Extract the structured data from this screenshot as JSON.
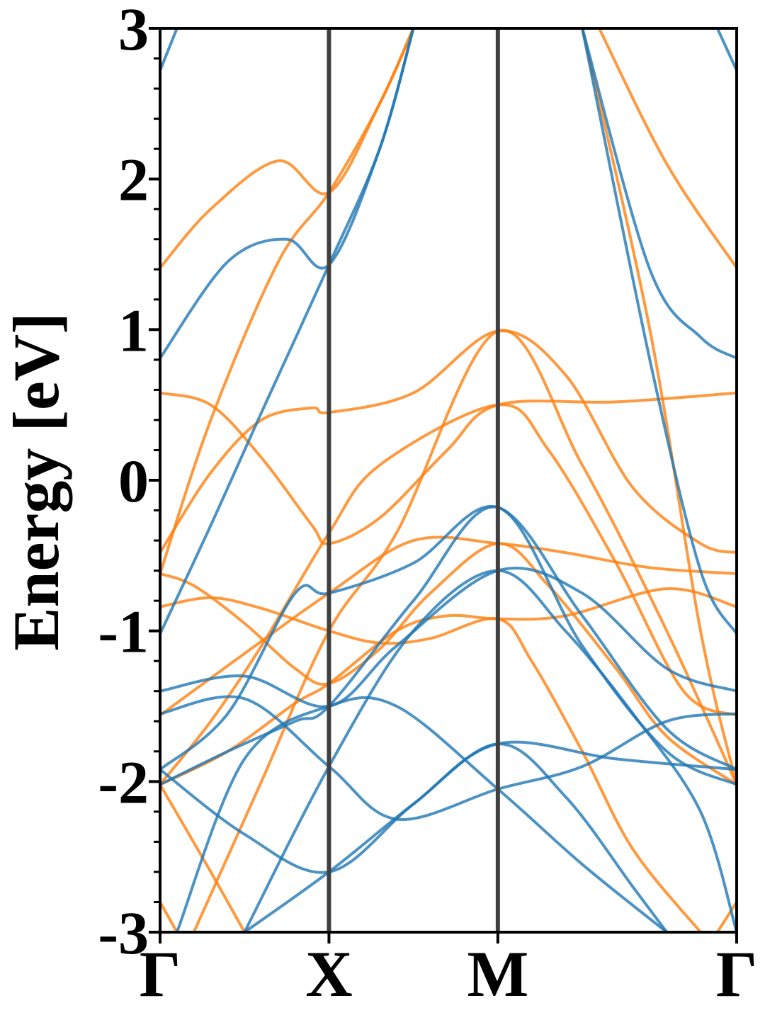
{
  "chart_data": {
    "type": "line",
    "title": "",
    "ylabel": "Energy [eV]",
    "xlabel": "",
    "ylim": [
      -3,
      3
    ],
    "yticks": [
      -3,
      -2,
      -1,
      0,
      1,
      2,
      3
    ],
    "y_tick_labels": [
      "-3",
      "-2",
      "-1",
      "0",
      "1",
      "2",
      "3"
    ],
    "xlim": [
      0,
      3.414
    ],
    "kpoints": [
      {
        "label": "Γ",
        "x": 0
      },
      {
        "label": "X",
        "x": 1
      },
      {
        "label": "M",
        "x": 2
      },
      {
        "label": "Γ",
        "x": 3.414
      }
    ],
    "colors": {
      "spin_up": "#1f77b4",
      "spin_down": "#ff7f0e",
      "kline": "#404040"
    },
    "grid": false,
    "legend": "none",
    "series": [
      {
        "color": "spin_down",
        "points": [
          [
            0,
            -1.56
          ],
          [
            0.5,
            -1.15
          ],
          [
            1,
            -0.75
          ],
          [
            1.5,
            -0.4
          ],
          [
            2,
            -0.42
          ],
          [
            2.4,
            -0.48
          ],
          [
            2.9,
            -0.58
          ],
          [
            3.414,
            -0.62
          ]
        ]
      },
      {
        "color": "spin_down",
        "points": [
          [
            0,
            -2.02
          ],
          [
            0.4,
            -1.8
          ],
          [
            0.8,
            -1.48
          ],
          [
            1,
            -1.35
          ],
          [
            1.4,
            -1.0
          ],
          [
            1.7,
            -0.9
          ],
          [
            2,
            -0.92
          ],
          [
            2.4,
            -0.9
          ],
          [
            3.0,
            -0.72
          ],
          [
            3.414,
            -0.84
          ]
        ]
      },
      {
        "color": "spin_down",
        "points": [
          [
            0,
            -0.62
          ],
          [
            0.2,
            -0.7
          ],
          [
            0.5,
            -0.95
          ],
          [
            0.8,
            -1.25
          ],
          [
            1,
            -1.35
          ],
          [
            1.3,
            -1.12
          ],
          [
            1.6,
            -0.75
          ],
          [
            2,
            -0.42
          ],
          [
            2.3,
            -0.7
          ],
          [
            2.7,
            -1.25
          ],
          [
            3.0,
            -1.7
          ],
          [
            3.414,
            -2.02
          ]
        ]
      },
      {
        "color": "spin_down",
        "points": [
          [
            0,
            -0.84
          ],
          [
            0.3,
            -0.78
          ],
          [
            0.6,
            -0.85
          ],
          [
            1,
            -1.0
          ],
          [
            1.3,
            -1.08
          ],
          [
            1.6,
            -1.05
          ],
          [
            2,
            -0.92
          ],
          [
            2.2,
            -1.2
          ],
          [
            2.5,
            -1.8
          ],
          [
            2.8,
            -2.45
          ],
          [
            3.2,
            -3.0
          ]
        ]
      },
      {
        "color": "spin_down",
        "points": [
          [
            0,
            -0.48
          ],
          [
            0.3,
            0.05
          ],
          [
            0.6,
            0.4
          ],
          [
            0.9,
            0.48
          ],
          [
            1,
            0.45
          ],
          [
            1.5,
            0.58
          ],
          [
            2,
            0.99
          ],
          [
            2.4,
            0.7
          ],
          [
            2.8,
            -0.05
          ],
          [
            3.2,
            -0.42
          ],
          [
            3.414,
            -0.48
          ]
        ]
      },
      {
        "color": "spin_down",
        "points": [
          [
            0,
            0.58
          ],
          [
            0.3,
            0.5
          ],
          [
            0.6,
            0.15
          ],
          [
            0.9,
            -0.3
          ],
          [
            1,
            -0.42
          ],
          [
            1.3,
            -0.25
          ],
          [
            1.7,
            0.2
          ],
          [
            2,
            0.5
          ],
          [
            2.7,
            0.52
          ],
          [
            3.414,
            0.58
          ]
        ]
      },
      {
        "color": "spin_down",
        "points": [
          [
            0,
            1.41
          ],
          [
            0.3,
            1.8
          ],
          [
            0.7,
            2.12
          ],
          [
            1,
            1.91
          ],
          [
            1.3,
            2.5
          ],
          [
            1.5,
            3.0
          ]
        ]
      },
      {
        "color": "spin_down",
        "points": [
          [
            0,
            -0.62
          ],
          [
            0.3,
            0.4
          ],
          [
            0.7,
            1.45
          ],
          [
            1,
            1.91
          ],
          [
            1.3,
            2.5
          ],
          [
            1.5,
            3.0
          ]
        ]
      },
      {
        "color": "spin_down",
        "points": [
          [
            0,
            -2.02
          ],
          [
            0.3,
            -1.6
          ],
          [
            0.6,
            -1.1
          ],
          [
            1,
            -0.35
          ],
          [
            1.3,
            0.1
          ],
          [
            2,
            0.5
          ],
          [
            2.3,
            0.2
          ],
          [
            2.7,
            -0.55
          ],
          [
            3.1,
            -1.4
          ],
          [
            3.414,
            -1.56
          ]
        ]
      },
      {
        "color": "spin_down",
        "points": [
          [
            0,
            -2.02
          ],
          [
            0.3,
            -2.6
          ],
          [
            0.5,
            -3.0
          ]
        ]
      },
      {
        "color": "spin_down",
        "points": [
          [
            0.2,
            -3.0
          ],
          [
            0.6,
            -2.0
          ],
          [
            1,
            -1.0
          ],
          [
            1.4,
            -0.35
          ],
          [
            2,
            0.99
          ],
          [
            2.5,
            0.1
          ],
          [
            3.0,
            -1.0
          ],
          [
            3.414,
            -2.02
          ]
        ]
      },
      {
        "color": "spin_down",
        "points": [
          [
            2.6,
            3.0
          ],
          [
            3.0,
            2.1
          ],
          [
            3.414,
            1.41
          ]
        ]
      },
      {
        "color": "spin_down",
        "points": [
          [
            2.5,
            3.0
          ],
          [
            2.9,
            1.0
          ],
          [
            3.2,
            -1.0
          ],
          [
            3.414,
            -2.02
          ]
        ]
      },
      {
        "color": "spin_down",
        "points": [
          [
            0,
            3.0
          ],
          [
            0.1,
            3.0
          ]
        ]
      },
      {
        "color": "spin_down",
        "points": [
          [
            3.3,
            3.0
          ],
          [
            3.414,
            3.0
          ]
        ]
      },
      {
        "color": "spin_down",
        "points": [
          [
            0,
            -2.8
          ],
          [
            0.1,
            -3.0
          ]
        ]
      },
      {
        "color": "spin_down",
        "points": [
          [
            3.3,
            -3.0
          ],
          [
            3.414,
            -2.8
          ]
        ]
      },
      {
        "color": "spin_up",
        "points": [
          [
            0,
            0.81
          ],
          [
            0.4,
            1.45
          ],
          [
            0.75,
            1.6
          ],
          [
            1,
            1.43
          ],
          [
            1.3,
            2.2
          ],
          [
            1.5,
            3.0
          ]
        ]
      },
      {
        "color": "spin_up",
        "points": [
          [
            0,
            -1.02
          ],
          [
            0.3,
            -0.3
          ],
          [
            0.6,
            0.45
          ],
          [
            1,
            1.43
          ],
          [
            1.3,
            2.2
          ],
          [
            1.5,
            3.0
          ]
        ]
      },
      {
        "color": "spin_up",
        "points": [
          [
            0,
            -1.4
          ],
          [
            0.5,
            -1.3
          ],
          [
            1,
            -1.5
          ],
          [
            1.4,
            -1.1
          ],
          [
            2,
            -0.6
          ],
          [
            2.5,
            -0.75
          ],
          [
            3.0,
            -1.25
          ],
          [
            3.414,
            -1.4
          ]
        ]
      },
      {
        "color": "spin_up",
        "points": [
          [
            0,
            -1.55
          ],
          [
            0.5,
            -1.45
          ],
          [
            1,
            -1.9
          ],
          [
            1.4,
            -2.25
          ],
          [
            2,
            -2.05
          ],
          [
            2.5,
            -1.9
          ],
          [
            3.0,
            -1.6
          ],
          [
            3.414,
            -1.55
          ]
        ]
      },
      {
        "color": "spin_up",
        "points": [
          [
            0,
            -1.92
          ],
          [
            0.4,
            -1.55
          ],
          [
            0.8,
            -0.75
          ],
          [
            1,
            -0.75
          ],
          [
            1.5,
            -0.55
          ],
          [
            2,
            -0.18
          ],
          [
            2.5,
            -0.9
          ],
          [
            3.0,
            -1.65
          ],
          [
            3.414,
            -1.92
          ]
        ]
      },
      {
        "color": "spin_up",
        "points": [
          [
            0,
            -2.02
          ],
          [
            0.4,
            -1.8
          ],
          [
            0.8,
            -1.6
          ],
          [
            1,
            -1.5
          ],
          [
            1.5,
            -0.8
          ],
          [
            2,
            -0.18
          ],
          [
            2.5,
            -1.1
          ],
          [
            3.0,
            -1.8
          ],
          [
            3.414,
            -2.02
          ]
        ]
      },
      {
        "color": "spin_up",
        "points": [
          [
            0,
            -1.92
          ],
          [
            0.5,
            -2.35
          ],
          [
            1,
            -2.6
          ],
          [
            1.5,
            -2.15
          ],
          [
            2,
            -1.75
          ],
          [
            2.7,
            -1.85
          ],
          [
            3.414,
            -1.92
          ]
        ]
      },
      {
        "color": "spin_up",
        "points": [
          [
            0.1,
            -3.0
          ],
          [
            0.5,
            -1.85
          ],
          [
            1,
            -1.5
          ],
          [
            1.4,
            -1.5
          ],
          [
            2,
            -2.05
          ],
          [
            2.5,
            -2.55
          ],
          [
            3.0,
            -3.0
          ]
        ]
      },
      {
        "color": "spin_up",
        "points": [
          [
            0.5,
            -3.0
          ],
          [
            1,
            -2.6
          ],
          [
            1.5,
            -2.15
          ],
          [
            2,
            -1.75
          ],
          [
            2.4,
            -2.1
          ],
          [
            2.8,
            -2.7
          ],
          [
            3.0,
            -3.0
          ]
        ]
      },
      {
        "color": "spin_up",
        "points": [
          [
            0.5,
            -3.0
          ],
          [
            1,
            -1.9
          ],
          [
            1.5,
            -1.0
          ],
          [
            2,
            -0.6
          ],
          [
            2.4,
            -1.0
          ],
          [
            2.8,
            -1.55
          ],
          [
            3.2,
            -2.2
          ],
          [
            3.414,
            -3.0
          ]
        ]
      },
      {
        "color": "spin_up",
        "points": [
          [
            2.5,
            3.0
          ],
          [
            2.9,
            1.4
          ],
          [
            3.2,
            0.95
          ],
          [
            3.414,
            0.81
          ]
        ]
      },
      {
        "color": "spin_up",
        "points": [
          [
            2.5,
            3.0
          ],
          [
            2.9,
            0.8
          ],
          [
            3.2,
            -0.6
          ],
          [
            3.414,
            -1.02
          ]
        ]
      },
      {
        "color": "spin_up",
        "points": [
          [
            0,
            2.72
          ],
          [
            0.1,
            3.0
          ]
        ]
      },
      {
        "color": "spin_up",
        "points": [
          [
            3.3,
            3.0
          ],
          [
            3.414,
            2.72
          ]
        ]
      }
    ]
  }
}
